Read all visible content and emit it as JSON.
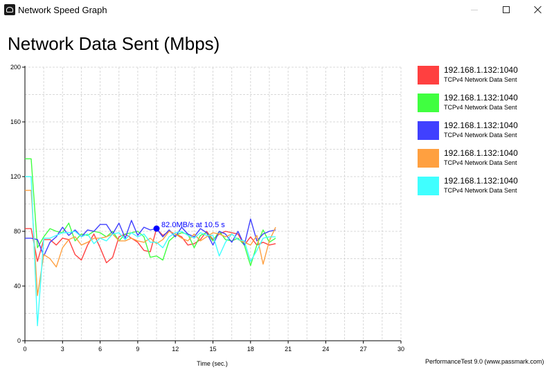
{
  "window": {
    "title": "Network Speed Graph",
    "icon": "app-icon"
  },
  "chart_data": {
    "type": "line",
    "title": "Network Data Sent (Mbps)",
    "xlabel": "Time (sec.)",
    "ylabel": "",
    "xlim": [
      0,
      30
    ],
    "ylim": [
      0,
      200
    ],
    "x_ticks": [
      0,
      3,
      6,
      9,
      12,
      15,
      18,
      21,
      24,
      27,
      30
    ],
    "y_ticks": [
      0,
      40,
      80,
      120,
      160,
      200
    ],
    "grid": true,
    "legend_position": "right",
    "x": [
      0,
      0.5,
      1,
      1.5,
      2,
      2.5,
      3,
      3.5,
      4,
      4.5,
      5,
      5.5,
      6,
      6.5,
      7,
      7.5,
      8,
      8.5,
      9,
      9.5,
      10,
      10.5,
      11,
      11.5,
      12,
      12.5,
      13,
      13.5,
      14,
      14.5,
      15,
      15.5,
      16,
      16.5,
      17,
      17.5,
      18,
      18.5,
      19,
      19.5,
      20
    ],
    "series": [
      {
        "name": "192.168.1.132:1040",
        "subtitle": "TCPv4 Network Data Sent",
        "color": "#ff4040",
        "values": [
          82,
          82,
          58,
          74,
          74,
          70,
          75,
          74,
          63,
          59,
          70,
          78,
          68,
          57,
          61,
          76,
          78,
          75,
          72,
          66,
          65,
          82,
          77,
          80,
          78,
          76,
          70,
          71,
          74,
          80,
          74,
          78,
          80,
          79,
          78,
          70,
          76,
          70,
          72,
          70,
          71
        ]
      },
      {
        "name": "192.168.1.132:1040",
        "subtitle": "TCPv4 Network Data Sent",
        "color": "#40ff40",
        "values": [
          133,
          133,
          68,
          76,
          82,
          80,
          79,
          86,
          73,
          78,
          77,
          80,
          79,
          76,
          80,
          73,
          78,
          79,
          80,
          76,
          61,
          62,
          59,
          73,
          77,
          79,
          78,
          68,
          77,
          79,
          73,
          80,
          74,
          73,
          75,
          70,
          55,
          70,
          81,
          72,
          75
        ]
      },
      {
        "name": "192.168.1.132:1040",
        "subtitle": "TCPv4 Network Data Sent",
        "color": "#4040ff",
        "values": [
          75,
          75,
          74,
          62,
          72,
          76,
          83,
          77,
          81,
          76,
          81,
          80,
          85,
          85,
          78,
          86,
          75,
          88,
          77,
          83,
          81,
          82,
          76,
          81,
          76,
          83,
          78,
          76,
          82,
          79,
          70,
          80,
          78,
          72,
          80,
          70,
          89,
          73,
          78,
          80,
          81
        ]
      },
      {
        "name": "192.168.1.132:1040",
        "subtitle": "TCPv4 Network Data Sent",
        "color": "#ffa040",
        "values": [
          110,
          110,
          33,
          63,
          60,
          54,
          68,
          74,
          76,
          70,
          72,
          75,
          75,
          76,
          78,
          73,
          73,
          75,
          73,
          72,
          75,
          71,
          74,
          80,
          78,
          75,
          73,
          78,
          73,
          76,
          79,
          78,
          76,
          78,
          74,
          72,
          70,
          77,
          56,
          73,
          83
        ]
      },
      {
        "name": "192.168.1.132:1040",
        "subtitle": "TCPv4 Network Data Sent",
        "color": "#40ffff",
        "values": [
          120,
          120,
          11,
          75,
          75,
          77,
          79,
          79,
          80,
          76,
          78,
          71,
          75,
          73,
          78,
          79,
          74,
          79,
          76,
          78,
          72,
          72,
          68,
          76,
          79,
          80,
          77,
          75,
          79,
          77,
          77,
          62,
          72,
          78,
          74,
          73,
          58,
          66,
          75,
          76,
          76
        ]
      }
    ],
    "annotation": {
      "text": "82.0MB/s at 10.5 s",
      "x": 10.5,
      "y": 82,
      "color": "#0000ff"
    }
  },
  "footer": {
    "credit": "PerformanceTest 9.0 (www.passmark.com)"
  }
}
